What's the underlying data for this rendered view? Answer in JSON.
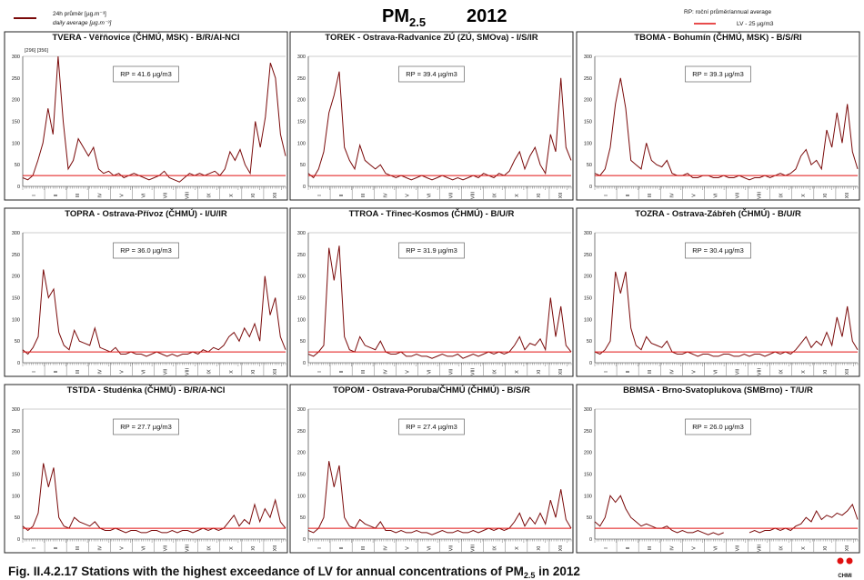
{
  "header": {
    "title_main": "PM",
    "title_sub": "2.5",
    "year": "2012",
    "legend_line1": "24h průměr [µg.m⁻³]",
    "legend_line2": "daily average [µg.m⁻³]",
    "rp_legend": "RP: roční průměr/annual average",
    "lv_legend": "LV - 25 µg/m3"
  },
  "caption": {
    "prefix": "Fig. II.4.2.17  Stations with the highest exceedance of LV for annual concentrations of PM",
    "sub": "2.5",
    "suffix": " in 2012"
  },
  "logo_text": "CHMI",
  "colors": {
    "series": "#7a0a0a",
    "limit": "#e01010"
  },
  "chart_data": {
    "type": "line",
    "unit": "µg/m3",
    "limit_value": 25,
    "ylim": [
      0,
      300
    ],
    "yticks": [
      0,
      50,
      100,
      150,
      200,
      250,
      300
    ],
    "months": [
      "I",
      "II",
      "III",
      "IV",
      "V",
      "VI",
      "VII",
      "VIII",
      "IX",
      "X",
      "XI",
      "XII"
    ],
    "panels": [
      {
        "title": "TVERA -  Věřňovice (ČHMÚ, MSK) - B/R/AI-NCI",
        "rp": "RP = 41.6 µg/m3",
        "note": "[296] [356]",
        "values": [
          20,
          15,
          25,
          60,
          100,
          180,
          120,
          300,
          150,
          40,
          60,
          110,
          90,
          70,
          90,
          40,
          30,
          35,
          25,
          30,
          20,
          25,
          30,
          25,
          20,
          15,
          20,
          25,
          35,
          20,
          15,
          10,
          20,
          30,
          25,
          30,
          25,
          30,
          35,
          25,
          40,
          80,
          60,
          85,
          50,
          30,
          150,
          90,
          160,
          285,
          250,
          120,
          70
        ]
      },
      {
        "title": "TOREK - Ostrava-Radvanice ZÚ (ZÚ, SMOva) - I/S/IR",
        "rp": "RP = 39.4 µg/m3",
        "values": [
          30,
          20,
          40,
          80,
          170,
          210,
          265,
          90,
          60,
          40,
          95,
          60,
          50,
          40,
          50,
          30,
          25,
          20,
          25,
          20,
          15,
          20,
          25,
          20,
          15,
          20,
          25,
          20,
          15,
          20,
          15,
          20,
          25,
          20,
          30,
          25,
          20,
          30,
          25,
          35,
          60,
          80,
          40,
          70,
          90,
          50,
          30,
          120,
          80,
          250,
          90,
          60
        ]
      },
      {
        "title": "TBOMA - Bohumín (ČHMÚ, MSK) - B/S/RI",
        "rp": "RP = 39.3 µg/m3",
        "values": [
          30,
          25,
          40,
          90,
          190,
          250,
          180,
          60,
          50,
          40,
          100,
          60,
          50,
          45,
          60,
          30,
          25,
          25,
          30,
          20,
          20,
          25,
          25,
          20,
          20,
          25,
          20,
          20,
          25,
          20,
          15,
          20,
          20,
          25,
          20,
          25,
          30,
          25,
          30,
          40,
          70,
          85,
          50,
          60,
          40,
          130,
          90,
          170,
          100,
          190,
          80,
          40
        ]
      },
      {
        "title": "TOPRA - Ostrava-Přívoz (ČHMÚ) - I/U/IR",
        "rp": "RP = 36.0 µg/m3",
        "values": [
          30,
          20,
          35,
          60,
          215,
          150,
          170,
          70,
          40,
          30,
          75,
          50,
          45,
          40,
          80,
          35,
          30,
          25,
          35,
          20,
          20,
          25,
          20,
          20,
          15,
          20,
          25,
          20,
          15,
          20,
          15,
          20,
          20,
          25,
          20,
          30,
          25,
          35,
          30,
          40,
          60,
          70,
          50,
          80,
          60,
          90,
          50,
          200,
          110,
          150,
          60,
          30
        ]
      },
      {
        "title": "TTROA - Třinec-Kosmos (ČHMÚ) - B/U/R",
        "rp": "RP = 31.9 µg/m3",
        "values": [
          20,
          15,
          25,
          40,
          265,
          190,
          270,
          60,
          30,
          25,
          60,
          40,
          35,
          30,
          50,
          25,
          20,
          20,
          25,
          15,
          15,
          20,
          15,
          15,
          10,
          15,
          20,
          15,
          15,
          20,
          10,
          15,
          20,
          15,
          20,
          25,
          20,
          25,
          20,
          25,
          40,
          60,
          30,
          45,
          40,
          55,
          30,
          150,
          60,
          130,
          40,
          25
        ]
      },
      {
        "title": "TOZRA - Ostrava-Zábřeh (ČHMÚ) - B/U/R",
        "rp": "RP = 30.4 µg/m3",
        "values": [
          25,
          20,
          30,
          50,
          210,
          160,
          210,
          80,
          40,
          30,
          60,
          45,
          40,
          35,
          50,
          25,
          20,
          20,
          25,
          20,
          15,
          20,
          20,
          15,
          15,
          20,
          20,
          15,
          15,
          20,
          15,
          20,
          20,
          15,
          20,
          25,
          20,
          25,
          20,
          30,
          45,
          60,
          35,
          50,
          40,
          70,
          40,
          105,
          60,
          130,
          50,
          30
        ]
      },
      {
        "title": "TSTDA - Studénka (ČHMÚ) - B/R/A-NCI",
        "rp": "RP = 27.7 µg/m3",
        "values": [
          30,
          20,
          30,
          60,
          175,
          120,
          165,
          50,
          30,
          25,
          50,
          40,
          35,
          30,
          40,
          25,
          20,
          20,
          25,
          20,
          15,
          20,
          20,
          15,
          15,
          20,
          20,
          15,
          15,
          20,
          15,
          20,
          20,
          15,
          20,
          25,
          20,
          25,
          20,
          25,
          40,
          55,
          30,
          45,
          35,
          80,
          40,
          70,
          50,
          90,
          40,
          25
        ]
      },
      {
        "title": "TOPOM - Ostrava-Poruba/ČHMÚ (ČHMÚ) - B/S/R",
        "rp": "RP = 27.4 µg/m3",
        "values": [
          20,
          15,
          25,
          50,
          180,
          120,
          170,
          50,
          30,
          25,
          45,
          35,
          30,
          25,
          40,
          20,
          20,
          15,
          20,
          15,
          15,
          20,
          15,
          15,
          10,
          15,
          20,
          15,
          15,
          20,
          15,
          15,
          20,
          15,
          20,
          25,
          20,
          25,
          20,
          25,
          40,
          60,
          30,
          50,
          35,
          60,
          35,
          90,
          50,
          115,
          45,
          25
        ]
      },
      {
        "title": "BBMSA - Brno-Svatoplukova (SMBrno) - T/U/R",
        "rp": "RP = 26.0 µg/m3",
        "values": [
          40,
          30,
          50,
          100,
          85,
          100,
          70,
          50,
          40,
          30,
          35,
          30,
          25,
          25,
          30,
          20,
          15,
          20,
          15,
          15,
          20,
          15,
          10,
          15,
          10,
          15,
          null,
          null,
          null,
          null,
          15,
          20,
          15,
          20,
          20,
          25,
          20,
          25,
          20,
          30,
          35,
          50,
          40,
          65,
          45,
          55,
          50,
          60,
          55,
          65,
          80,
          45
        ]
      }
    ]
  }
}
